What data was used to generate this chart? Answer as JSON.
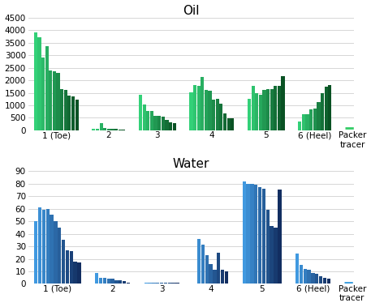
{
  "oil_title": "Oil",
  "water_title": "Water",
  "oil_ylim": [
    0,
    4500
  ],
  "water_ylim": [
    0,
    90
  ],
  "oil_yticks": [
    0,
    500,
    1000,
    1500,
    2000,
    2500,
    3000,
    3500,
    4000,
    4500
  ],
  "water_yticks": [
    0,
    10,
    20,
    30,
    40,
    50,
    60,
    70,
    80,
    90
  ],
  "group_labels": [
    "1 (Toe)",
    "2",
    "3",
    "4",
    "5",
    "6 (Heel)",
    "Packer\ntracer"
  ],
  "oil_groups": [
    [
      3900,
      3700,
      2900,
      3350,
      2400,
      2350,
      2300,
      1650,
      1600,
      1380,
      1350,
      1230
    ],
    [
      60,
      50,
      280,
      100,
      70,
      60,
      50,
      40,
      30
    ],
    [
      1430,
      1020,
      780,
      760,
      580,
      580,
      550,
      420,
      330,
      290
    ],
    [
      1520,
      1820,
      1780,
      2130,
      1600,
      1580,
      1230,
      1250,
      1060,
      680,
      490,
      470
    ],
    [
      1250,
      1780,
      1480,
      1420,
      1620,
      1640,
      1660,
      1790,
      1790,
      2170
    ],
    [
      340,
      650,
      640,
      830,
      870,
      1120,
      1490,
      1740,
      1800
    ],
    [
      100
    ]
  ],
  "water_groups": [
    [
      50,
      61,
      59,
      60,
      55,
      50,
      45,
      35,
      27,
      26,
      18,
      17
    ],
    [
      9,
      5,
      5,
      4,
      4,
      3,
      3,
      2,
      1
    ],
    [
      1,
      1,
      1,
      1,
      1,
      1,
      1,
      1,
      1
    ],
    [
      0.5,
      36,
      31,
      23,
      16,
      11,
      25,
      11,
      10
    ],
    [
      82,
      80,
      80,
      79,
      77,
      76,
      59,
      46,
      45,
      75
    ],
    [
      24,
      15,
      12,
      11,
      9,
      8,
      6,
      5,
      4
    ],
    [
      1
    ]
  ],
  "bg_color": "#ffffff",
  "grid_color": "#d0d0d0",
  "title_fontsize": 11,
  "tick_fontsize": 7.5
}
